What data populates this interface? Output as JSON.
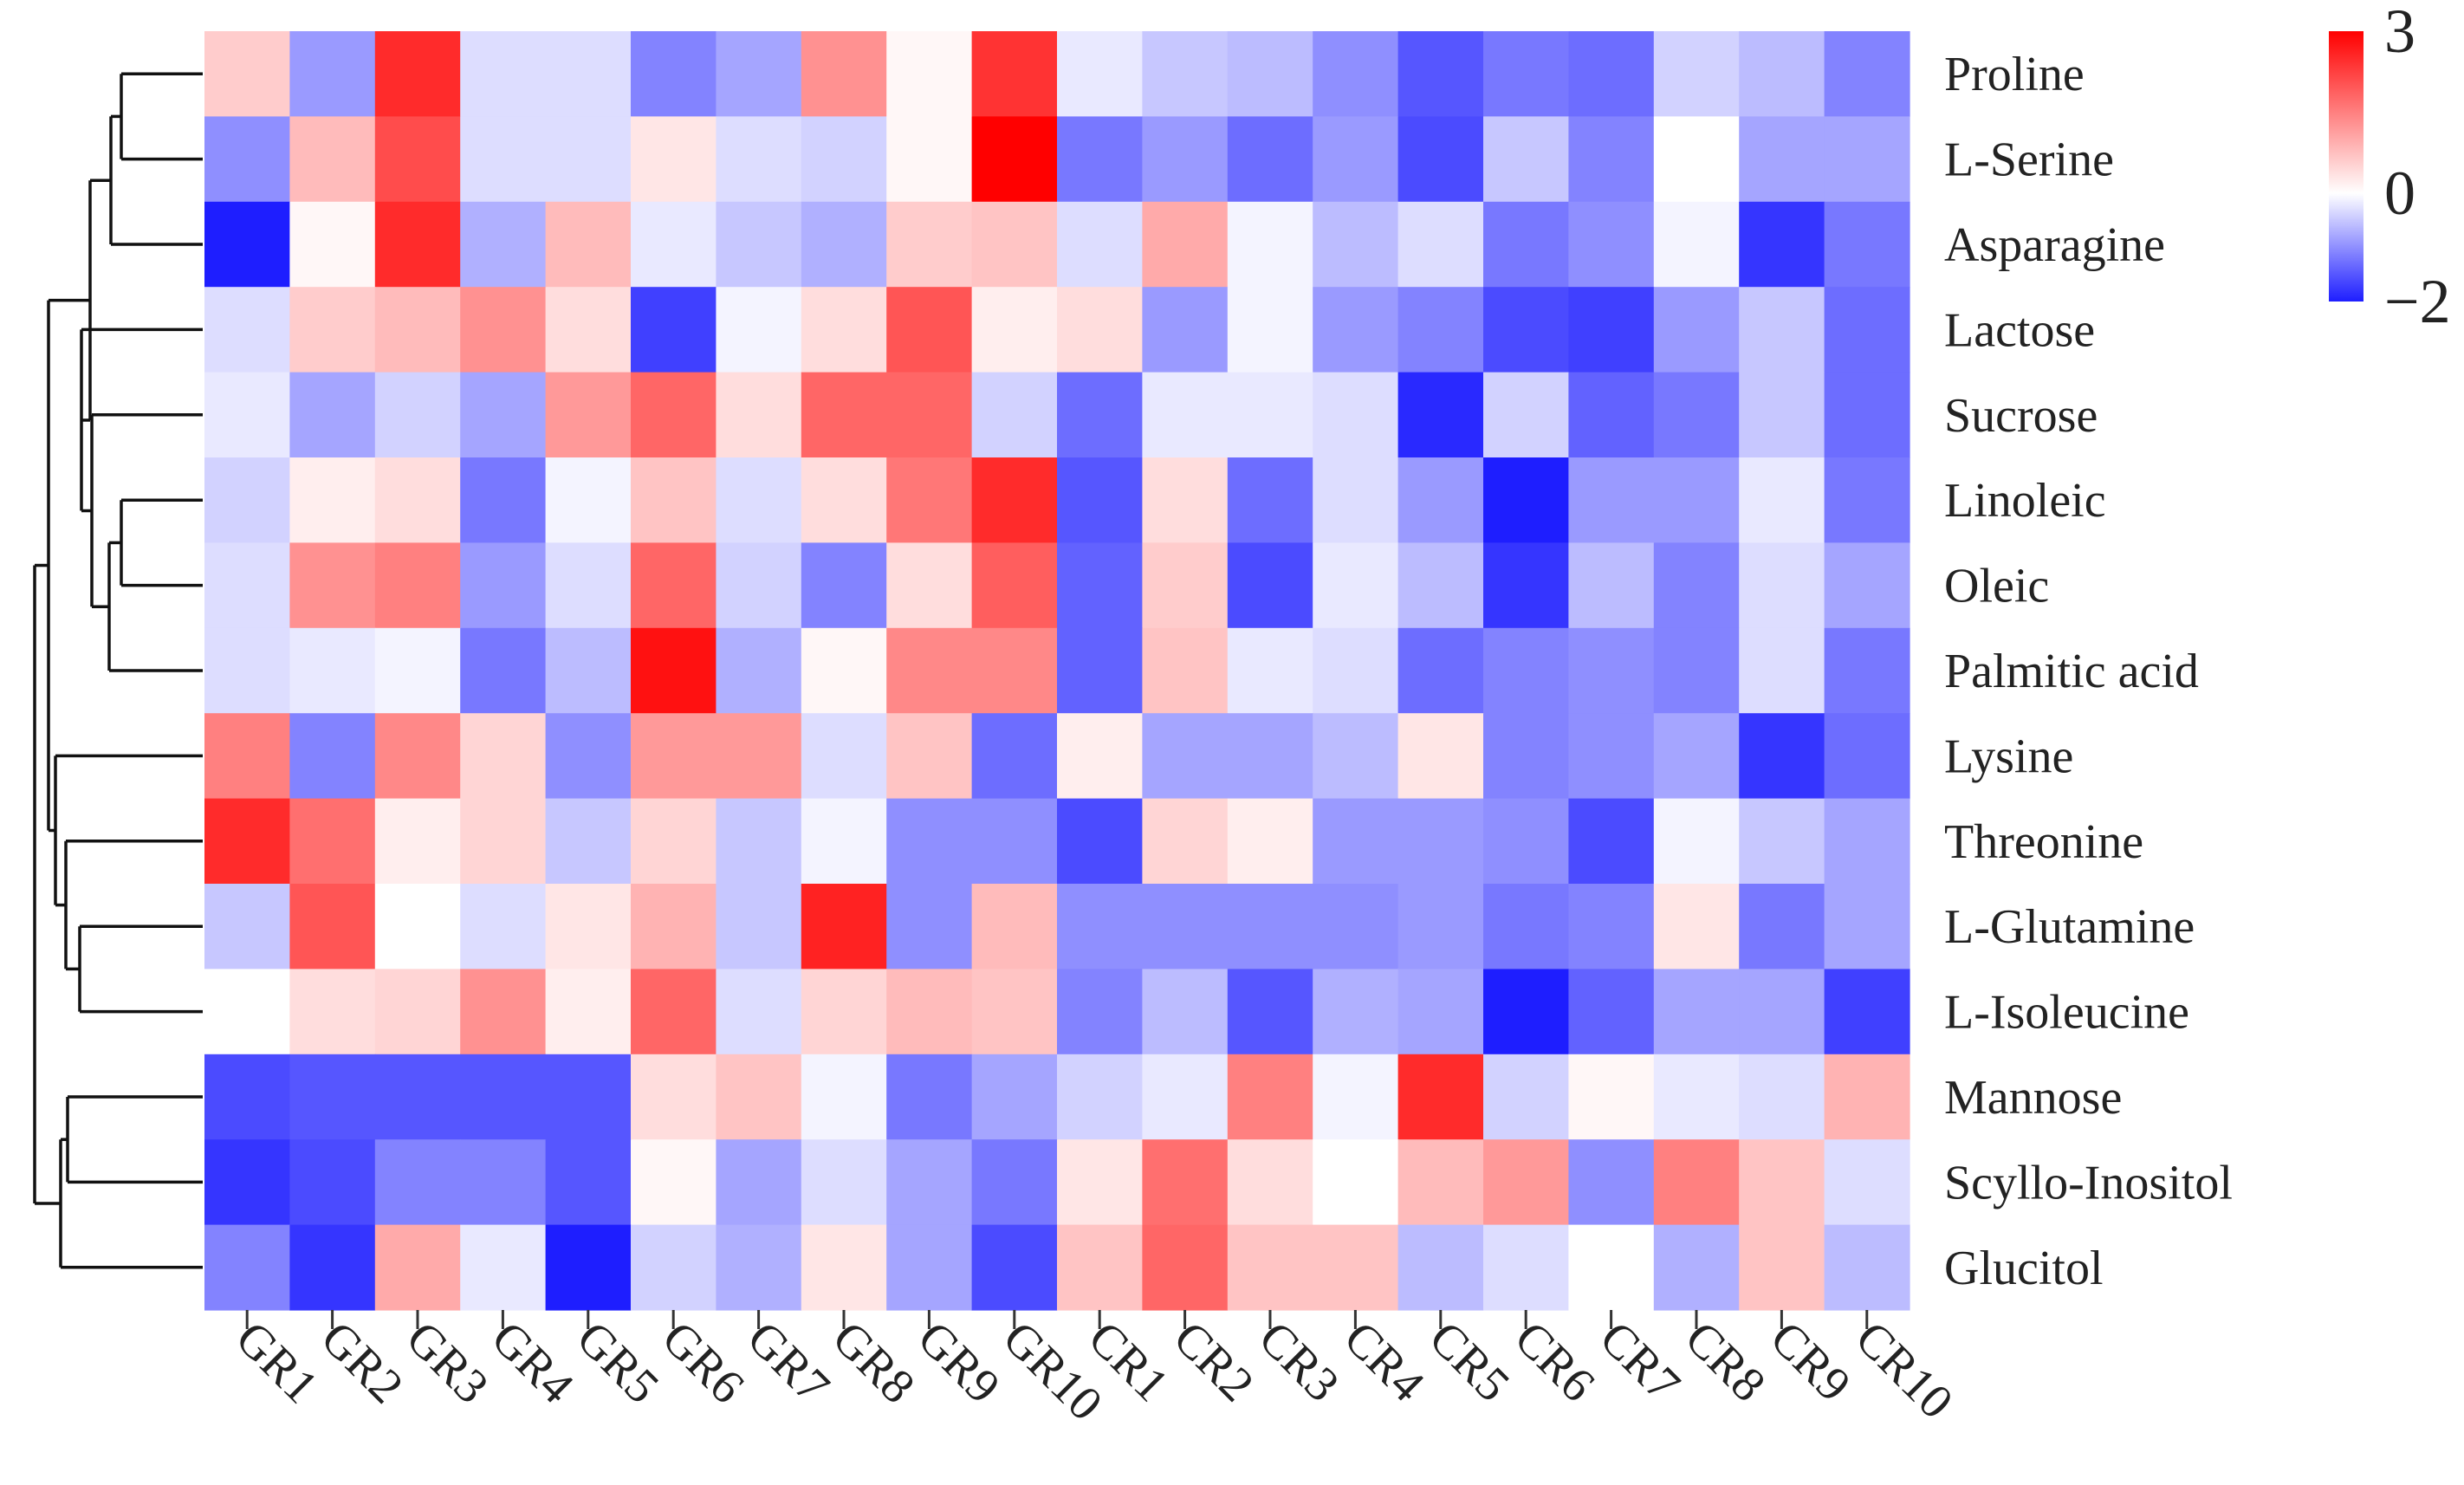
{
  "chart_data": {
    "type": "heatmap",
    "rows": [
      "Proline",
      "L-Serine",
      "Asparagine",
      "Lactose",
      "Sucrose",
      "Linoleic",
      "Oleic",
      "Palmitic acid",
      "Lysine",
      "Threonine",
      "L-Glutamine",
      "L-Isoleucine",
      "Mannose",
      "Scyllo-Inositol",
      "Glucitol"
    ],
    "columns": [
      "GR1",
      "GR2",
      "GR3",
      "GR4",
      "GR5",
      "GR6",
      "GR7",
      "GR8",
      "GR9",
      "GR10",
      "CR1",
      "CR2",
      "CR3",
      "CR4",
      "CR5",
      "CR6",
      "CR7",
      "CR8",
      "CR9",
      "CR10"
    ],
    "values": [
      [
        0.6,
        -0.9,
        2.5,
        -0.3,
        -0.3,
        -1.1,
        -0.8,
        1.3,
        0.1,
        2.4,
        -0.2,
        -0.5,
        -0.6,
        -1.0,
        -1.5,
        -1.2,
        -1.3,
        -0.4,
        -0.6,
        -1.1
      ],
      [
        -1.0,
        0.8,
        2.1,
        -0.3,
        -0.3,
        0.3,
        -0.3,
        -0.4,
        0.1,
        3.0,
        -1.2,
        -0.9,
        -1.3,
        -0.9,
        -1.6,
        -0.5,
        -1.1,
        0.0,
        -0.8,
        -0.8
      ],
      [
        -2.0,
        0.1,
        2.5,
        -0.7,
        0.8,
        -0.2,
        -0.5,
        -0.7,
        0.6,
        0.7,
        -0.3,
        1.0,
        -0.1,
        -0.6,
        -0.3,
        -1.2,
        -1.0,
        -0.1,
        -1.8,
        -1.2
      ],
      [
        -0.3,
        0.6,
        0.8,
        1.3,
        0.4,
        -1.7,
        -0.1,
        0.4,
        2.0,
        0.2,
        0.4,
        -0.9,
        -0.1,
        -0.9,
        -1.1,
        -1.6,
        -1.7,
        -0.9,
        -0.5,
        -1.3
      ],
      [
        -0.2,
        -0.8,
        -0.4,
        -0.8,
        1.2,
        1.8,
        0.4,
        1.8,
        1.8,
        -0.4,
        -1.3,
        -0.2,
        -0.2,
        -0.3,
        -1.9,
        -0.4,
        -1.4,
        -1.2,
        -0.5,
        -1.3
      ],
      [
        -0.4,
        0.2,
        0.4,
        -1.2,
        -0.1,
        0.7,
        -0.3,
        0.4,
        1.6,
        2.5,
        -1.5,
        0.4,
        -1.3,
        -0.3,
        -0.9,
        -2.0,
        -0.9,
        -0.9,
        -0.2,
        -1.2
      ],
      [
        -0.3,
        1.3,
        1.5,
        -0.9,
        -0.3,
        1.8,
        -0.4,
        -1.1,
        0.4,
        1.9,
        -1.4,
        0.6,
        -1.6,
        -0.2,
        -0.6,
        -1.8,
        -0.6,
        -1.1,
        -0.3,
        -0.8
      ],
      [
        -0.3,
        -0.2,
        -0.1,
        -1.2,
        -0.6,
        2.8,
        -0.7,
        0.1,
        1.4,
        1.4,
        -1.4,
        0.7,
        -0.2,
        -0.3,
        -1.3,
        -1.1,
        -1.0,
        -1.1,
        -0.3,
        -1.2
      ],
      [
        1.5,
        -1.1,
        1.4,
        0.5,
        -1.0,
        1.2,
        1.2,
        -0.3,
        0.7,
        -1.3,
        0.2,
        -0.8,
        -0.8,
        -0.6,
        0.3,
        -1.1,
        -1.0,
        -0.8,
        -1.8,
        -1.3
      ],
      [
        2.5,
        1.7,
        0.2,
        0.5,
        -0.5,
        0.5,
        -0.5,
        -0.1,
        -1.0,
        -1.0,
        -1.6,
        0.5,
        0.2,
        -0.9,
        -0.9,
        -1.0,
        -1.6,
        -0.1,
        -0.5,
        -0.8
      ],
      [
        -0.5,
        2.0,
        0.0,
        -0.3,
        0.3,
        0.9,
        -0.5,
        2.6,
        -1.0,
        0.8,
        -1.0,
        -1.0,
        -1.0,
        -1.0,
        -0.9,
        -1.2,
        -1.1,
        0.3,
        -1.2,
        -0.8
      ],
      [
        0.0,
        0.4,
        0.5,
        1.3,
        0.2,
        1.8,
        -0.3,
        0.5,
        0.8,
        0.7,
        -1.1,
        -0.6,
        -1.5,
        -0.7,
        -0.8,
        -2.0,
        -1.4,
        -0.8,
        -0.8,
        -1.7
      ],
      [
        -1.6,
        -1.5,
        -1.5,
        -1.5,
        -1.5,
        0.4,
        0.7,
        -0.1,
        -1.2,
        -0.8,
        -0.4,
        -0.2,
        1.5,
        -0.1,
        2.5,
        -0.4,
        0.1,
        -0.2,
        -0.3,
        0.9
      ],
      [
        -1.8,
        -1.6,
        -1.1,
        -1.1,
        -1.5,
        0.1,
        -0.8,
        -0.3,
        -0.8,
        -1.2,
        0.3,
        1.7,
        0.4,
        0.0,
        0.8,
        1.2,
        -1.0,
        1.5,
        0.7,
        -0.3
      ],
      [
        -1.1,
        -1.8,
        1.0,
        -0.2,
        -2.0,
        -0.4,
        -0.7,
        0.3,
        -0.8,
        -1.6,
        0.7,
        1.8,
        0.7,
        0.7,
        -0.6,
        -0.3,
        0.0,
        -0.7,
        0.7,
        -0.6
      ]
    ],
    "colorbar": {
      "min": -2,
      "max": 3,
      "ticks": [
        "3",
        "0",
        "−2"
      ],
      "tick_values": [
        3,
        0,
        -2
      ]
    },
    "colors": {
      "low": "#1e1eff",
      "mid": "#ffffff",
      "high": "#ff0000"
    },
    "row_dendrogram": true,
    "legend_position": "top-right"
  }
}
